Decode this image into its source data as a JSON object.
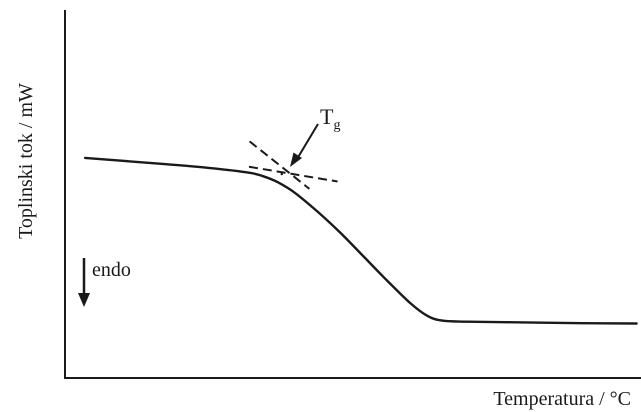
{
  "chart_data": {
    "type": "line",
    "title": "",
    "xlabel": "Temperatura / °C",
    "ylabel": "Toplinski tok / mW",
    "grid": false,
    "legend": "none",
    "xlim": [
      0,
      100
    ],
    "ylim": [
      0,
      100
    ],
    "series": [
      {
        "points": [
          [
            3.5,
            59.8
          ],
          [
            15,
            58.4
          ],
          [
            25,
            57.1
          ],
          [
            32,
            55.8
          ],
          [
            34.5,
            54.8
          ],
          [
            37,
            53.2
          ],
          [
            40,
            50.3
          ],
          [
            44,
            45.1
          ],
          [
            48,
            39.3
          ],
          [
            52,
            32.9
          ],
          [
            56,
            26.5
          ],
          [
            60,
            20.4
          ],
          [
            63,
            16.9
          ],
          [
            65.6,
            15.6
          ],
          [
            70,
            15.3
          ],
          [
            80,
            15.1
          ],
          [
            90,
            14.9
          ],
          [
            99.4,
            14.8
          ]
        ]
      }
    ],
    "annotations": {
      "tangent_lines": [
        {
          "from": [
            32,
            57.4
          ],
          "to": [
            47.4,
            53.4
          ],
          "style": "dashed"
        },
        {
          "from": [
            32.1,
            64.3
          ],
          "to": [
            42.5,
            51.4
          ],
          "style": "dashed"
        }
      ],
      "tg_label": {
        "base": "T",
        "subscript": "g"
      },
      "tg_point": [
        37.7,
        55.4
      ],
      "endo_label": "endo",
      "endo_direction": "down"
    },
    "colors": {
      "line": "#1a1a1a",
      "axis": "#1a1a1a"
    }
  }
}
